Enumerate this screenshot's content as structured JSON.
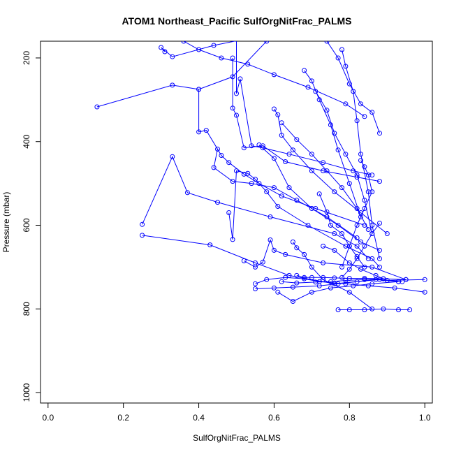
{
  "chart_data": {
    "type": "line",
    "title": "ATOM1 Northeast_Pacific SulfOrgNitFrac_PALMS",
    "xlabel": "SulfOrgNitFrac_PALMS",
    "ylabel": "Pressure (mbar)",
    "xlim": [
      -0.02,
      1.02
    ],
    "ylim": [
      1025,
      160
    ],
    "x_ticks": [
      0.0,
      0.2,
      0.4,
      0.6,
      0.8,
      1.0
    ],
    "x_tick_labels": [
      "0.0",
      "0.2",
      "0.4",
      "0.6",
      "0.8",
      "1.0"
    ],
    "y_ticks": [
      200,
      400,
      600,
      800,
      1000
    ],
    "y_tick_labels": [
      "200",
      "400",
      "600",
      "800",
      "1000"
    ],
    "grid": false,
    "color": "#0000ff",
    "series": [
      {
        "x": [
          0.13,
          0.33,
          0.4,
          0.49,
          0.58,
          0.62,
          0.65
        ],
        "y": [
          317,
          265,
          275,
          245,
          160,
          120,
          90
        ]
      },
      {
        "x": [
          0.31,
          0.3,
          0.33,
          0.44,
          0.55,
          0.68
        ],
        "y": [
          185,
          175,
          197,
          170,
          150,
          130
        ]
      },
      {
        "x": [
          0.25,
          0.33,
          0.37,
          0.45,
          0.59,
          0.76,
          0.82,
          0.85
        ],
        "y": [
          598,
          436,
          522,
          545,
          580,
          620,
          650,
          680
        ]
      },
      {
        "x": [
          0.25,
          0.43,
          0.55,
          0.64,
          0.76,
          0.87,
          0.93
        ],
        "y": [
          624,
          647,
          690,
          720,
          740,
          730,
          735
        ]
      },
      {
        "x": [
          0.4,
          0.4,
          0.42,
          0.46,
          0.48,
          0.52,
          0.56,
          0.62,
          0.71,
          0.84
        ],
        "y": [
          275,
          377,
          373,
          433,
          450,
          478,
          500,
          530,
          560,
          600
        ]
      },
      {
        "x": [
          0.49,
          0.49,
          0.5,
          0.52,
          0.57,
          0.63,
          0.73,
          0.82,
          0.88
        ],
        "y": [
          200,
          320,
          337,
          415,
          410,
          448,
          470,
          485,
          495
        ]
      },
      {
        "x": [
          0.5,
          0.5,
          0.51,
          0.54,
          0.57,
          0.64,
          0.73,
          0.81,
          0.86
        ],
        "y": [
          130,
          285,
          250,
          410,
          415,
          430,
          450,
          470,
          480
        ]
      },
      {
        "x": [
          0.48,
          0.49,
          0.5,
          0.53,
          0.55,
          0.58,
          0.61,
          0.69,
          0.79,
          0.86,
          0.88
        ],
        "y": [
          570,
          634,
          470,
          476,
          490,
          520,
          555,
          600,
          650,
          680,
          700
        ]
      },
      {
        "x": [
          0.45,
          0.44,
          0.49,
          0.54,
          0.6,
          0.66,
          0.74,
          0.82
        ],
        "y": [
          418,
          462,
          495,
          500,
          510,
          540,
          580,
          630
        ]
      },
      {
        "x": [
          0.52,
          0.55,
          0.57,
          0.59,
          0.6,
          0.63,
          0.73,
          0.86,
          0.95
        ],
        "y": [
          685,
          700,
          688,
          635,
          660,
          670,
          690,
          700,
          730
        ]
      },
      {
        "x": [
          0.6,
          0.61,
          0.62,
          0.65,
          0.7,
          0.76,
          0.83,
          0.9
        ],
        "y": [
          322,
          336,
          385,
          420,
          470,
          520,
          570,
          620
        ]
      },
      {
        "x": [
          0.56,
          0.6,
          0.64,
          0.7,
          0.77,
          0.83,
          0.88
        ],
        "y": [
          408,
          440,
          510,
          560,
          600,
          640,
          660
        ]
      },
      {
        "x": [
          0.65,
          0.66,
          0.68,
          0.7,
          0.73,
          0.8,
          0.86
        ],
        "y": [
          640,
          654,
          670,
          700,
          730,
          760,
          800
        ]
      },
      {
        "x": [
          0.55,
          0.58,
          0.63,
          0.68,
          0.72,
          0.79,
          0.85,
          0.92,
          1.0
        ],
        "y": [
          740,
          730,
          725,
          728,
          735,
          740,
          745,
          750,
          760
        ]
      },
      {
        "x": [
          0.55,
          0.6,
          0.65,
          0.72,
          0.77,
          0.82,
          0.88,
          0.94
        ],
        "y": [
          752,
          750,
          748,
          745,
          740,
          735,
          730,
          735
        ]
      },
      {
        "x": [
          0.61,
          0.65,
          0.7,
          0.75,
          0.81,
          0.86,
          0.93
        ],
        "y": [
          760,
          782,
          760,
          750,
          745,
          740,
          735
        ]
      },
      {
        "x": [
          0.77,
          0.8,
          0.84,
          0.89,
          0.93,
          0.96
        ],
        "y": [
          802,
          802,
          802,
          800,
          802,
          802
        ]
      },
      {
        "x": [
          0.74,
          0.77,
          0.8,
          0.83,
          0.86,
          0.88
        ],
        "y": [
          160,
          200,
          262,
          310,
          330,
          380
        ]
      },
      {
        "x": [
          0.78,
          0.79,
          0.81,
          0.82,
          0.83,
          0.85,
          0.86,
          0.88
        ],
        "y": [
          180,
          220,
          280,
          350,
          430,
          520,
          600,
          680
        ]
      },
      {
        "x": [
          0.68,
          0.7,
          0.72,
          0.75,
          0.77,
          0.8,
          0.83
        ],
        "y": [
          230,
          255,
          300,
          360,
          420,
          500,
          580
        ]
      },
      {
        "x": [
          0.71,
          0.74,
          0.76,
          0.79,
          0.82,
          0.84,
          0.86
        ],
        "y": [
          280,
          325,
          380,
          430,
          480,
          540,
          620
        ]
      },
      {
        "x": [
          0.83,
          0.84,
          0.85,
          0.86,
          0.84,
          0.82,
          0.8,
          0.78
        ],
        "y": [
          445,
          460,
          480,
          520,
          560,
          600,
          650,
          700
        ]
      },
      {
        "x": [
          0.62,
          0.66,
          0.7,
          0.74,
          0.78,
          0.82,
          0.85
        ],
        "y": [
          355,
          395,
          430,
          470,
          510,
          560,
          610
        ]
      },
      {
        "x": [
          0.72,
          0.74,
          0.75,
          0.78,
          0.8,
          0.82,
          0.84
        ],
        "y": [
          525,
          568,
          600,
          620,
          650,
          675,
          700
        ]
      },
      {
        "x": [
          0.88,
          0.86,
          0.84,
          0.82,
          0.8,
          0.78
        ],
        "y": [
          595,
          620,
          650,
          680,
          705,
          725
        ]
      },
      {
        "x": [
          0.66,
          0.68,
          0.7,
          0.73,
          0.76,
          0.8,
          0.84,
          0.89
        ],
        "y": [
          720,
          725,
          725,
          725,
          726,
          727,
          727,
          728
        ]
      },
      {
        "x": [
          0.62,
          0.66,
          0.71,
          0.75,
          0.79,
          0.84,
          0.89,
          0.95
        ],
        "y": [
          735,
          738,
          736,
          735,
          732,
          730,
          728,
          730
        ]
      },
      {
        "x": [
          0.73,
          0.76,
          0.8,
          0.83,
          0.87,
          0.9,
          1.0
        ],
        "y": [
          650,
          660,
          690,
          705,
          720,
          732,
          730
        ]
      },
      {
        "x": [
          0.36,
          0.4,
          0.46,
          0.53,
          0.6,
          0.69,
          0.79,
          0.84
        ],
        "y": [
          160,
          180,
          200,
          215,
          240,
          270,
          310,
          340
        ]
      }
    ]
  }
}
